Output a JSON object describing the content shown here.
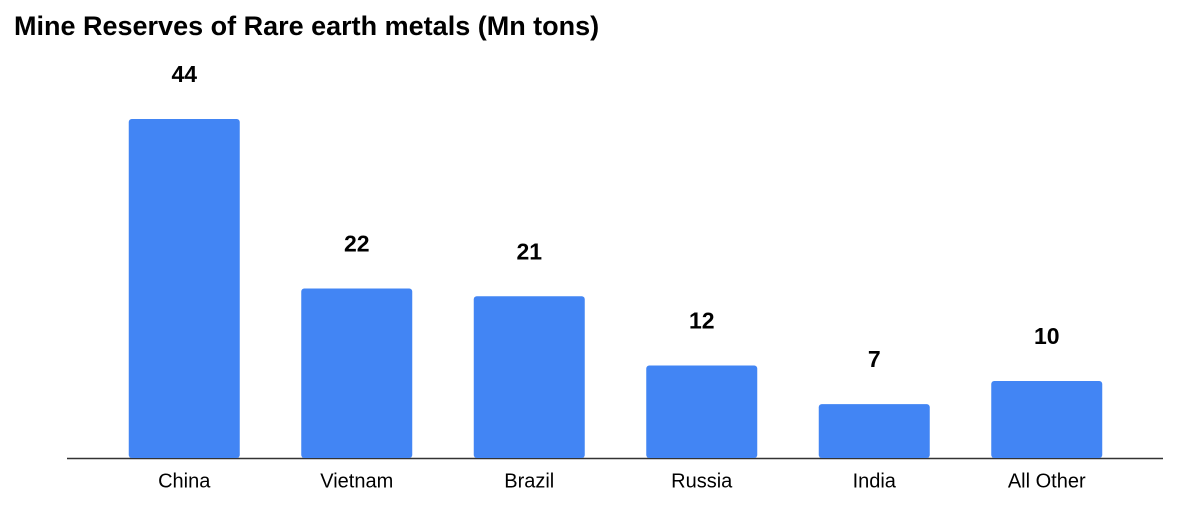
{
  "chart_data": {
    "type": "bar",
    "title": "Mine Reserves of Rare earth metals (Mn tons)",
    "categories": [
      "China",
      "Vietnam",
      "Brazil",
      "Russia",
      "India",
      "All Other"
    ],
    "values": [
      44,
      22,
      21,
      12,
      7,
      10
    ],
    "color": "#4285f4"
  }
}
